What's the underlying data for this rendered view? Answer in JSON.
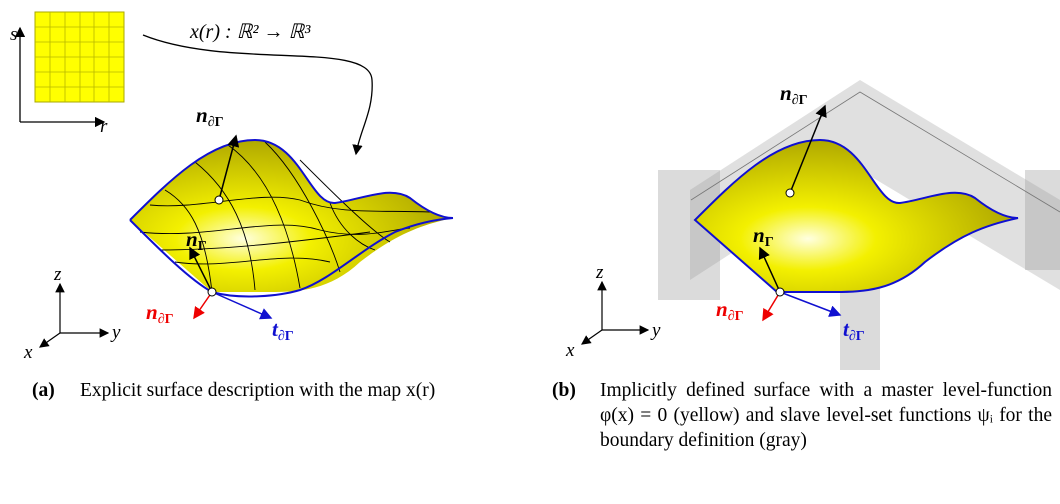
{
  "panels": [
    {
      "label": "(a)",
      "caption": "Explicit surface description with the map x(r)",
      "param_axes": {
        "s": "s",
        "r": "r"
      },
      "map": "x(r) : ℝ² → ℝ³",
      "vectors": {
        "n_boundary": {
          "symbol": "n",
          "sub": "∂Γ"
        },
        "n_surface": {
          "symbol": "n",
          "sub": "Γ"
        },
        "n_boundary_plane": {
          "symbol": "n",
          "sub": "∂Γ"
        },
        "t_boundary": {
          "symbol": "t",
          "sub": "∂Γ"
        }
      },
      "axes": {
        "z": "z",
        "y": "y",
        "x": "x"
      }
    },
    {
      "label": "(b)",
      "caption": "Implicitly defined surface with a master level-function φ(x) = 0 (yellow) and slave level-set functions ψᵢ for the boundary definition (gray)",
      "vectors": {
        "n_boundary": {
          "symbol": "n",
          "sub": "∂Γ"
        },
        "n_surface": {
          "symbol": "n",
          "sub": "Γ"
        },
        "n_boundary_plane": {
          "symbol": "n",
          "sub": "∂Γ"
        },
        "t_boundary": {
          "symbol": "t",
          "sub": "∂Γ"
        }
      },
      "axes": {
        "z": "z",
        "y": "y",
        "x": "x"
      }
    }
  ]
}
